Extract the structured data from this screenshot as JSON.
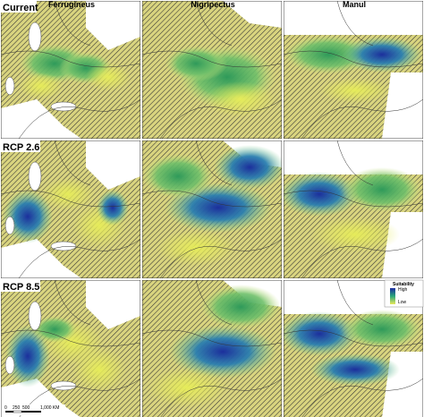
{
  "columns": [
    "Ferrugineus",
    "Nigripectus",
    "Manul"
  ],
  "rows": [
    "Current",
    "RCP 2.6",
    "RCP 8.5"
  ],
  "legend": {
    "title": "Suitability",
    "high": "High",
    "low": "Low"
  },
  "scale_bar": {
    "labels": [
      "0",
      "250",
      "500",
      "1,000 KM"
    ]
  }
}
